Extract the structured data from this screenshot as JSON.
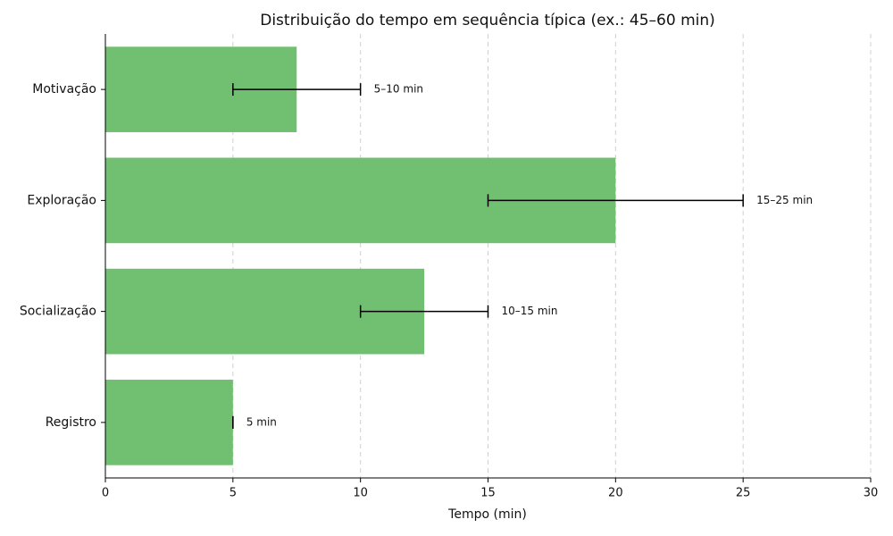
{
  "chart_data": {
    "type": "barh",
    "title": "Distribuição do tempo em sequência típica (ex.: 45–60 min)",
    "x_label": "Tempo (min)",
    "categories": [
      "Registro",
      "Socialização",
      "Exploração",
      "Motivação"
    ],
    "values": [
      5,
      12.5,
      20,
      7.5
    ],
    "errors": [
      0,
      2.5,
      5,
      2.5
    ],
    "annotations": [
      "5 min",
      "10–15 min",
      "15–25 min",
      "5–10 min"
    ],
    "color": "#71bf71",
    "xlim": [
      0,
      30
    ],
    "xticks": [
      0,
      5,
      10,
      15,
      20,
      25,
      30
    ],
    "grid": true
  }
}
